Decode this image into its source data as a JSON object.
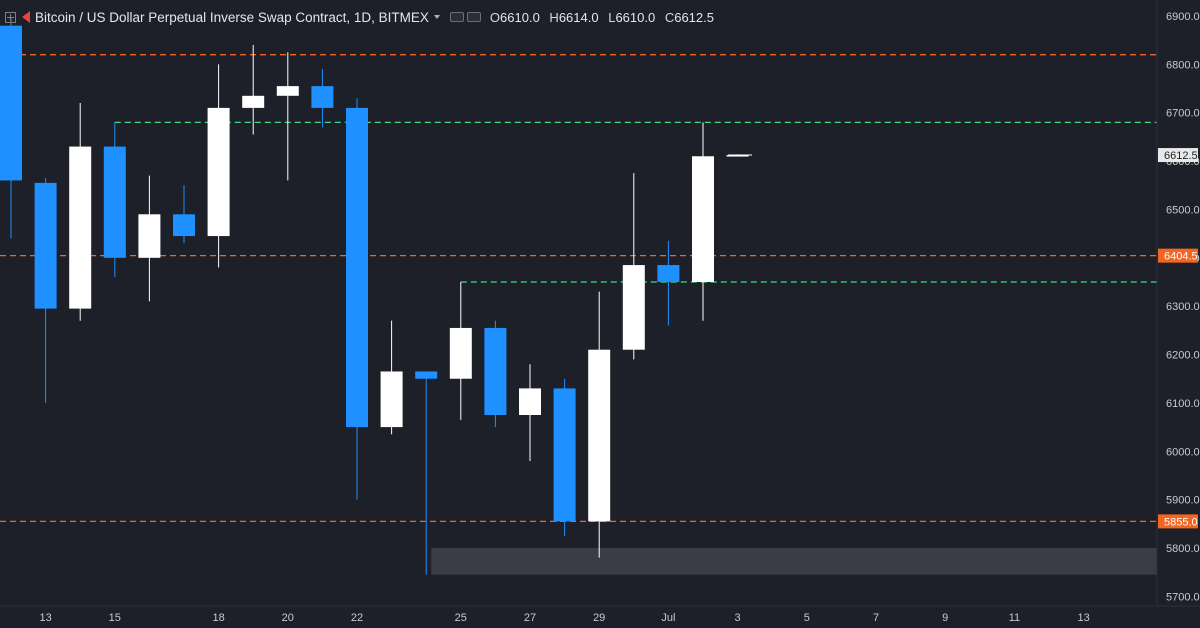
{
  "header": {
    "title": "Bitcoin / US Dollar Perpetual Inverse Swap Contract, 1D, BITMEX",
    "ohlc": [
      {
        "key": "O",
        "value": "6610.0"
      },
      {
        "key": "H",
        "value": "6614.0"
      },
      {
        "key": "L",
        "value": "6610.0"
      },
      {
        "key": "C",
        "value": "6612.5"
      }
    ]
  },
  "colors": {
    "background": "#1d2029",
    "up": "#ffffff",
    "down": "#1e90ff",
    "orange_line": "#f26522",
    "green_line": "#3ddc84",
    "axis_text": "#c8cad0",
    "price_tag": "#e8e8e8",
    "zone": "#3a3d46"
  },
  "chart_data": {
    "type": "candlestick",
    "y_axis": {
      "ticks": [
        "5700.0",
        "5800.0",
        "5900.0",
        "6000.0",
        "6100.0",
        "6200.0",
        "6300.0",
        "6400.0",
        "6500.0",
        "6600.0",
        "6700.0",
        "6800.0",
        "6900.0"
      ],
      "range": [
        5680,
        6930
      ]
    },
    "x_axis": {
      "ticks": [
        "13",
        "15",
        "18",
        "20",
        "22",
        "25",
        "27",
        "29",
        "Jul",
        "3",
        "5",
        "7",
        "9",
        "11",
        "13"
      ]
    },
    "candles": [
      {
        "date": "2018-06-12",
        "open": 6880,
        "high": 6895,
        "low": 6440,
        "close": 6560
      },
      {
        "date": "2018-06-13",
        "open": 6555,
        "high": 6565,
        "low": 6100,
        "close": 6295
      },
      {
        "date": "2018-06-14",
        "open": 6295,
        "high": 6720,
        "low": 6270,
        "close": 6630
      },
      {
        "date": "2018-06-15",
        "open": 6630,
        "high": 6680,
        "low": 6360,
        "close": 6400
      },
      {
        "date": "2018-06-16",
        "open": 6400,
        "high": 6570,
        "low": 6310,
        "close": 6490
      },
      {
        "date": "2018-06-17",
        "open": 6490,
        "high": 6550,
        "low": 6430,
        "close": 6445
      },
      {
        "date": "2018-06-18",
        "open": 6445,
        "high": 6800,
        "low": 6380,
        "close": 6710
      },
      {
        "date": "2018-06-19",
        "open": 6710,
        "high": 6840,
        "low": 6655,
        "close": 6735
      },
      {
        "date": "2018-06-20",
        "open": 6735,
        "high": 6825,
        "low": 6560,
        "close": 6755
      },
      {
        "date": "2018-06-21",
        "open": 6755,
        "high": 6790,
        "low": 6670,
        "close": 6710
      },
      {
        "date": "2018-06-22",
        "open": 6710,
        "high": 6730,
        "low": 5900,
        "close": 6050
      },
      {
        "date": "2018-06-23",
        "open": 6050,
        "high": 6270,
        "low": 6035,
        "close": 6165
      },
      {
        "date": "2018-06-24",
        "open": 6165,
        "high": 6165,
        "low": 5745,
        "close": 6150
      },
      {
        "date": "2018-06-25",
        "open": 6150,
        "high": 6350,
        "low": 6065,
        "close": 6255
      },
      {
        "date": "2018-06-26",
        "open": 6255,
        "high": 6270,
        "low": 6050,
        "close": 6075
      },
      {
        "date": "2018-06-27",
        "open": 6075,
        "high": 6180,
        "low": 5980,
        "close": 6130
      },
      {
        "date": "2018-06-28",
        "open": 6130,
        "high": 6150,
        "low": 5825,
        "close": 5855
      },
      {
        "date": "2018-06-29",
        "open": 5855,
        "high": 6330,
        "low": 5780,
        "close": 6210
      },
      {
        "date": "2018-06-30",
        "open": 6210,
        "high": 6575,
        "low": 6190,
        "close": 6385
      },
      {
        "date": "2018-07-01",
        "open": 6385,
        "high": 6435,
        "low": 6260,
        "close": 6350
      },
      {
        "date": "2018-07-02",
        "open": 6350,
        "high": 6680,
        "low": 6270,
        "close": 6610
      },
      {
        "date": "2018-07-03",
        "open": 6610,
        "high": 6614,
        "low": 6610,
        "close": 6612.5
      }
    ],
    "levels": [
      {
        "type": "orange-dashed",
        "price": 6820
      },
      {
        "type": "orange-dashed",
        "price": 6404.5,
        "label": "6404.5"
      },
      {
        "type": "orange-dashed",
        "price": 5855,
        "label": "5855.0"
      },
      {
        "type": "green-dashed",
        "price": 6680,
        "start": "2018-06-15"
      },
      {
        "type": "green-dashed",
        "price": 6350,
        "start": "2018-06-25"
      }
    ],
    "zone": {
      "low": 5745,
      "high": 5800,
      "start": "2018-06-24"
    },
    "last_price": {
      "price": 6612.5,
      "label": "6612.5"
    }
  }
}
